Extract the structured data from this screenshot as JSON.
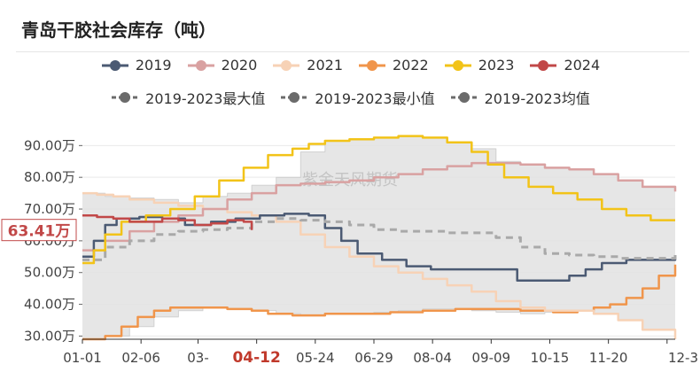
{
  "page": {
    "title": "青岛干胶社会库存（吨）",
    "watermark": "紫金天风期货",
    "current_value_label": "63.41万",
    "highlight_tick": "04-12"
  },
  "chart_data": {
    "type": "line",
    "title": "青岛干胶社会库存（吨）",
    "xlabel": "",
    "ylabel": "",
    "y_unit": "万",
    "ylim": [
      29,
      94
    ],
    "yticks": [
      "30.00万",
      "40.00万",
      "50.00万",
      "60.00万",
      "70.00万",
      "80.00万",
      "90.00万"
    ],
    "ytick_values": [
      30,
      40,
      50,
      60,
      70,
      80,
      90
    ],
    "xlim": [
      1,
      365
    ],
    "xticks": [
      "01-01",
      "02-06",
      "03-",
      "04-12",
      "05-24",
      "06-29",
      "08-04",
      "09-09",
      "10-15",
      "11-20",
      "12-3"
    ],
    "xtick_days": [
      1,
      37,
      72,
      108,
      144,
      180,
      216,
      252,
      288,
      324,
      360
    ],
    "legend_position": "top",
    "grid": true,
    "colors": {
      "2019": "#4b5a73",
      "2020": "#d9a1a1",
      "2021": "#f7d2b6",
      "2022": "#f0954b",
      "2023": "#f2c318",
      "2024": "#c14848",
      "max": "#bdbdbd",
      "min": "#bdbdbd",
      "avg": "#a9a9a9",
      "band": "#e2e2e2"
    },
    "series": [
      {
        "name": "2019",
        "key": "2019",
        "x": [
          1,
          8,
          15,
          22,
          36,
          50,
          64,
          80,
          95,
          110,
          125,
          140,
          150,
          160,
          170,
          185,
          200,
          215,
          230,
          250,
          265,
          268,
          290,
          300,
          310,
          320,
          335,
          350,
          365
        ],
        "values": [
          55,
          60,
          65,
          67,
          67.5,
          67,
          65,
          66,
          67,
          68,
          68.5,
          68,
          64,
          60,
          56,
          54,
          52,
          51,
          51,
          51,
          51,
          47.5,
          47.5,
          49,
          51,
          53,
          54,
          54,
          55
        ]
      },
      {
        "name": "2020",
        "key": "2020",
        "x": [
          1,
          15,
          30,
          45,
          60,
          75,
          90,
          105,
          120,
          135,
          150,
          165,
          180,
          195,
          210,
          225,
          240,
          255,
          270,
          285,
          300,
          315,
          330,
          345,
          365
        ],
        "values": [
          57,
          60,
          63,
          66,
          68,
          70,
          73,
          75,
          77.5,
          78,
          78.5,
          79,
          80,
          81,
          82.5,
          83.5,
          84.5,
          84.5,
          84,
          83,
          82.5,
          81,
          79,
          77,
          75.5
        ]
      },
      {
        "name": "2021",
        "key": "2021",
        "x": [
          1,
          10,
          20,
          30,
          45,
          60,
          75,
          90,
          105,
          120,
          135,
          150,
          165,
          180,
          195,
          210,
          225,
          240,
          255,
          270,
          285,
          300,
          315,
          330,
          345,
          365
        ],
        "values": [
          75,
          74.5,
          74,
          73,
          72,
          71,
          70,
          69,
          68,
          66,
          62,
          58,
          55,
          52,
          50,
          48,
          46,
          44,
          41,
          39,
          38,
          38,
          37,
          35,
          32,
          29
        ]
      },
      {
        "name": "2022",
        "key": "2022",
        "x": [
          1,
          15,
          25,
          35,
          45,
          55,
          70,
          90,
          105,
          115,
          130,
          150,
          170,
          190,
          210,
          230,
          250,
          270,
          290,
          305,
          315,
          325,
          335,
          345,
          355,
          365
        ],
        "values": [
          29,
          30,
          33,
          36,
          38,
          39,
          39,
          38.5,
          38,
          37,
          36.5,
          37,
          37,
          37.5,
          38,
          38.5,
          38.5,
          38,
          37.5,
          38,
          39,
          40,
          42,
          45,
          49,
          52.5
        ]
      },
      {
        "name": "2023",
        "key": "2023",
        "x": [
          1,
          8,
          15,
          25,
          40,
          55,
          70,
          85,
          100,
          115,
          130,
          140,
          150,
          165,
          180,
          195,
          210,
          225,
          240,
          250,
          260,
          275,
          290,
          305,
          320,
          335,
          350,
          365
        ],
        "values": [
          53,
          57,
          62,
          66,
          68,
          70,
          74,
          79,
          83,
          87,
          89,
          90.5,
          91.5,
          92,
          92.5,
          93,
          92.5,
          91,
          88,
          84,
          80,
          77,
          75,
          73,
          70,
          68,
          66.5,
          66.5
        ]
      },
      {
        "name": "2024",
        "key": "2024",
        "x": [
          1,
          10,
          20,
          30,
          40,
          50,
          60,
          70,
          80,
          90,
          100,
          105
        ],
        "values": [
          68,
          67.5,
          67,
          66,
          66,
          67,
          66.5,
          65,
          65.5,
          66.5,
          66,
          63.4
        ]
      },
      {
        "name": "2019-2023最大值",
        "key": "max",
        "dashed": true,
        "x": [
          1,
          15,
          30,
          45,
          60,
          75,
          90,
          105,
          120,
          135,
          150,
          165,
          180,
          195,
          210,
          225,
          240,
          255,
          270,
          285,
          300,
          315,
          330,
          345,
          365
        ],
        "values": [
          75,
          74,
          73.5,
          73,
          72,
          74,
          75,
          77.5,
          80,
          88,
          91.5,
          92,
          92.5,
          93,
          92.5,
          91,
          89,
          85,
          84,
          83,
          82.5,
          81,
          79,
          77,
          75.5
        ]
      },
      {
        "name": "2019-2023最小值",
        "key": "min",
        "dashed": true,
        "x": [
          1,
          15,
          30,
          45,
          60,
          75,
          90,
          105,
          120,
          135,
          150,
          165,
          180,
          195,
          210,
          225,
          240,
          255,
          270,
          285,
          300,
          315,
          330,
          345,
          365
        ],
        "values": [
          29,
          30,
          33,
          36,
          38,
          39,
          38.5,
          38,
          37,
          36.5,
          37,
          37,
          37.5,
          38,
          38.5,
          38.5,
          38,
          37.5,
          37,
          37.5,
          38,
          37,
          35,
          32,
          29
        ]
      },
      {
        "name": "2019-2023均值",
        "key": "avg",
        "dashed": true,
        "x": [
          1,
          15,
          30,
          45,
          60,
          75,
          90,
          105,
          120,
          135,
          150,
          165,
          180,
          195,
          210,
          225,
          240,
          255,
          270,
          285,
          300,
          315,
          330,
          345,
          365
        ],
        "values": [
          54,
          58,
          60,
          62,
          63,
          63.5,
          64,
          66,
          67,
          66.5,
          66,
          65,
          63.5,
          63,
          63,
          62.5,
          62.5,
          61,
          58,
          56,
          55.5,
          55,
          54.5,
          54.5,
          55.5
        ]
      }
    ]
  }
}
